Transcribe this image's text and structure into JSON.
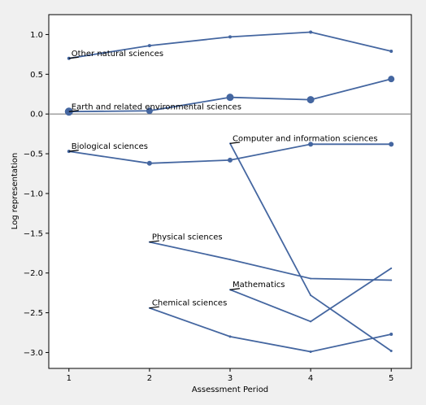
{
  "chart_data": {
    "type": "line",
    "title": "",
    "xlabel": "Assessment Period",
    "ylabel": "Log representation",
    "xlim": [
      0.75,
      5.25
    ],
    "ylim": [
      -3.2,
      1.25
    ],
    "xticks": [
      1,
      2,
      3,
      4,
      5
    ],
    "yticks": [
      1.0,
      0.5,
      0.0,
      -0.5,
      -1.0,
      -1.5,
      -2.0,
      -2.5,
      -3.0
    ],
    "ytick_labels": [
      "1.0",
      "0.5",
      "0.0",
      "−0.5",
      "−1.0",
      "−1.5",
      "−2.0",
      "−2.5",
      "−3.0"
    ],
    "reference_line_y": 0,
    "grid": false,
    "line_color": "#4466a0",
    "reference_color": "#808080",
    "series": [
      {
        "name": "Other natural sciences",
        "label_at": 1,
        "points": [
          {
            "x": 1,
            "y": 0.7,
            "size": 2
          },
          {
            "x": 2,
            "y": 0.86,
            "size": 2
          },
          {
            "x": 3,
            "y": 0.97,
            "size": 2
          },
          {
            "x": 4,
            "y": 1.03,
            "size": 2
          },
          {
            "x": 5,
            "y": 0.79,
            "size": 2
          }
        ]
      },
      {
        "name": "Earth and related environmental sciences",
        "label_at": 1,
        "points": [
          {
            "x": 1,
            "y": 0.03,
            "size": 5
          },
          {
            "x": 2,
            "y": 0.04,
            "size": 4
          },
          {
            "x": 3,
            "y": 0.21,
            "size": 4.5
          },
          {
            "x": 4,
            "y": 0.18,
            "size": 4.5
          },
          {
            "x": 5,
            "y": 0.44,
            "size": 4
          }
        ]
      },
      {
        "name": "Biological sciences",
        "label_at": 1,
        "points": [
          {
            "x": 1,
            "y": -0.47,
            "size": 2
          },
          {
            "x": 2,
            "y": -0.62,
            "size": 3
          },
          {
            "x": 3,
            "y": -0.58,
            "size": 3
          },
          {
            "x": 4,
            "y": -0.38,
            "size": 3
          },
          {
            "x": 5,
            "y": -0.38,
            "size": 3
          }
        ]
      },
      {
        "name": "Computer and information sciences",
        "label_at": 3,
        "points": [
          {
            "x": 3,
            "y": -0.37,
            "size": 1
          },
          {
            "x": 4,
            "y": -2.28,
            "size": 1
          },
          {
            "x": 5,
            "y": -2.98,
            "size": 1.5
          }
        ]
      },
      {
        "name": "Physical sciences",
        "label_at": 2,
        "points": [
          {
            "x": 2,
            "y": -1.61,
            "size": 1
          },
          {
            "x": 3,
            "y": -1.83,
            "size": 1
          },
          {
            "x": 4,
            "y": -2.07,
            "size": 1
          },
          {
            "x": 5,
            "y": -2.09,
            "size": 1
          }
        ]
      },
      {
        "name": "Mathematics",
        "label_at": 3,
        "points": [
          {
            "x": 3,
            "y": -2.21,
            "size": 1
          },
          {
            "x": 4,
            "y": -2.61,
            "size": 1
          },
          {
            "x": 5,
            "y": -1.94,
            "size": 1
          }
        ]
      },
      {
        "name": "Chemical sciences",
        "label_at": 2,
        "points": [
          {
            "x": 2,
            "y": -2.44,
            "size": 1
          },
          {
            "x": 3,
            "y": -2.8,
            "size": 1.5
          },
          {
            "x": 4,
            "y": -2.99,
            "size": 1.5
          },
          {
            "x": 5,
            "y": -2.77,
            "size": 2
          }
        ]
      }
    ]
  }
}
